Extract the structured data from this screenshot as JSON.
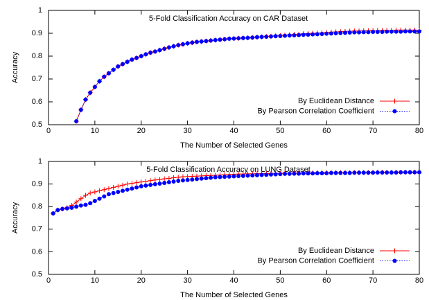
{
  "chart_data": [
    {
      "type": "line",
      "title": "5-Fold Classification Accuracy on CAR Dataset",
      "xlabel": "The Number of Selected Genes",
      "ylabel": "Accuracy",
      "x": [
        6,
        7,
        8,
        9,
        10,
        11,
        12,
        13,
        14,
        15,
        16,
        17,
        18,
        19,
        20,
        21,
        22,
        23,
        24,
        25,
        26,
        27,
        28,
        29,
        30,
        31,
        32,
        33,
        34,
        35,
        36,
        37,
        38,
        39,
        40,
        41,
        42,
        43,
        44,
        45,
        46,
        47,
        48,
        49,
        50,
        51,
        52,
        53,
        54,
        55,
        56,
        57,
        58,
        59,
        60,
        61,
        62,
        63,
        64,
        65,
        66,
        67,
        68,
        69,
        70,
        71,
        72,
        73,
        74,
        75,
        76,
        77,
        78,
        79,
        80
      ],
      "series": [
        {
          "name": "By Euclidean Distance",
          "color": "#ff0000",
          "marker": "plus",
          "dash": "solid",
          "values": [
            0.515,
            0.565,
            0.61,
            0.64,
            0.665,
            0.69,
            0.71,
            0.725,
            0.74,
            0.755,
            0.765,
            0.775,
            0.785,
            0.792,
            0.8,
            0.808,
            0.815,
            0.82,
            0.826,
            0.832,
            0.838,
            0.843,
            0.848,
            0.852,
            0.856,
            0.859,
            0.862,
            0.864,
            0.866,
            0.868,
            0.87,
            0.872,
            0.874,
            0.876,
            0.877,
            0.878,
            0.879,
            0.88,
            0.881,
            0.883,
            0.884,
            0.886,
            0.887,
            0.889,
            0.89,
            0.892,
            0.893,
            0.895,
            0.896,
            0.898,
            0.899,
            0.9,
            0.901,
            0.902,
            0.903,
            0.905,
            0.906,
            0.907,
            0.908,
            0.909,
            0.91,
            0.91,
            0.911,
            0.911,
            0.912,
            0.912,
            0.913,
            0.913,
            0.913,
            0.914,
            0.914,
            0.914,
            0.914,
            0.914,
            0.912
          ]
        },
        {
          "name": "By Pearson Correlation Coefficient",
          "color": "#0000ff",
          "marker": "circle",
          "dash": "dotted",
          "values": [
            0.515,
            0.565,
            0.61,
            0.64,
            0.665,
            0.69,
            0.71,
            0.725,
            0.74,
            0.755,
            0.765,
            0.775,
            0.785,
            0.792,
            0.8,
            0.808,
            0.815,
            0.82,
            0.826,
            0.832,
            0.838,
            0.843,
            0.848,
            0.852,
            0.856,
            0.859,
            0.862,
            0.864,
            0.866,
            0.868,
            0.87,
            0.872,
            0.874,
            0.876,
            0.877,
            0.878,
            0.879,
            0.88,
            0.881,
            0.883,
            0.884,
            0.885,
            0.886,
            0.887,
            0.888,
            0.889,
            0.89,
            0.891,
            0.892,
            0.893,
            0.894,
            0.895,
            0.896,
            0.897,
            0.898,
            0.899,
            0.9,
            0.901,
            0.902,
            0.903,
            0.904,
            0.904,
            0.905,
            0.905,
            0.906,
            0.906,
            0.906,
            0.907,
            0.907,
            0.907,
            0.907,
            0.908,
            0.908,
            0.908,
            0.908
          ]
        }
      ],
      "xlim": [
        0,
        80
      ],
      "ylim": [
        0.5,
        1
      ],
      "xticks": [
        0,
        10,
        20,
        30,
        40,
        50,
        60,
        70,
        80
      ],
      "yticks": [
        0.5,
        0.6,
        0.7,
        0.8,
        0.9,
        1
      ],
      "legend": "lower right"
    },
    {
      "type": "line",
      "title": "5-Fold Classification Accuracy on LUNG Dataset",
      "xlabel": "The Number of Selected Genes",
      "ylabel": "Accuracy",
      "x": [
        1,
        2,
        3,
        4,
        5,
        6,
        7,
        8,
        9,
        10,
        11,
        12,
        13,
        14,
        15,
        16,
        17,
        18,
        19,
        20,
        21,
        22,
        23,
        24,
        25,
        26,
        27,
        28,
        29,
        30,
        31,
        32,
        33,
        34,
        35,
        36,
        37,
        38,
        39,
        40,
        41,
        42,
        43,
        44,
        45,
        46,
        47,
        48,
        49,
        50,
        51,
        52,
        53,
        54,
        55,
        56,
        57,
        58,
        59,
        60,
        61,
        62,
        63,
        64,
        65,
        66,
        67,
        68,
        69,
        70,
        71,
        72,
        73,
        74,
        75,
        76,
        77,
        78,
        79,
        80
      ],
      "series": [
        {
          "name": "By Euclidean Distance",
          "color": "#ff0000",
          "marker": "plus",
          "dash": "solid",
          "values": [
            0.77,
            0.785,
            0.79,
            0.795,
            0.805,
            0.82,
            0.835,
            0.85,
            0.86,
            0.865,
            0.87,
            0.875,
            0.88,
            0.885,
            0.89,
            0.895,
            0.9,
            0.903,
            0.906,
            0.909,
            0.912,
            0.915,
            0.918,
            0.92,
            0.923,
            0.925,
            0.928,
            0.93,
            0.932,
            0.933,
            0.934,
            0.935,
            0.936,
            0.937,
            0.938,
            0.939,
            0.94,
            0.941,
            0.942,
            0.943,
            0.944,
            0.944,
            0.945,
            0.945,
            0.946,
            0.946,
            0.946,
            0.947,
            0.947,
            0.947,
            0.948,
            0.948,
            0.948,
            0.949,
            0.949,
            0.949,
            0.949,
            0.95,
            0.95,
            0.95,
            0.95,
            0.95,
            0.951,
            0.951,
            0.951,
            0.951,
            0.951,
            0.951,
            0.951,
            0.952,
            0.952,
            0.952,
            0.952,
            0.952,
            0.952,
            0.952,
            0.952,
            0.952,
            0.952,
            0.952
          ]
        },
        {
          "name": "By Pearson Correlation Coefficient",
          "color": "#0000ff",
          "marker": "circle",
          "dash": "dotted",
          "values": [
            0.77,
            0.785,
            0.79,
            0.792,
            0.795,
            0.8,
            0.805,
            0.808,
            0.815,
            0.825,
            0.835,
            0.845,
            0.855,
            0.86,
            0.865,
            0.87,
            0.875,
            0.88,
            0.885,
            0.89,
            0.893,
            0.896,
            0.899,
            0.902,
            0.905,
            0.908,
            0.911,
            0.914,
            0.916,
            0.918,
            0.92,
            0.922,
            0.924,
            0.926,
            0.928,
            0.93,
            0.931,
            0.932,
            0.933,
            0.934,
            0.935,
            0.936,
            0.937,
            0.938,
            0.939,
            0.94,
            0.941,
            0.942,
            0.943,
            0.944,
            0.945,
            0.945,
            0.946,
            0.946,
            0.947,
            0.947,
            0.947,
            0.948,
            0.948,
            0.948,
            0.949,
            0.949,
            0.949,
            0.949,
            0.949,
            0.95,
            0.95,
            0.95,
            0.95,
            0.95,
            0.951,
            0.951,
            0.951,
            0.951,
            0.951,
            0.952,
            0.952,
            0.952,
            0.952,
            0.952
          ]
        }
      ],
      "xlim": [
        0,
        80
      ],
      "ylim": [
        0.5,
        1
      ],
      "xticks": [
        0,
        10,
        20,
        30,
        40,
        50,
        60,
        70,
        80
      ],
      "yticks": [
        0.5,
        0.6,
        0.7,
        0.8,
        0.9,
        1
      ],
      "legend": "lower right"
    }
  ]
}
